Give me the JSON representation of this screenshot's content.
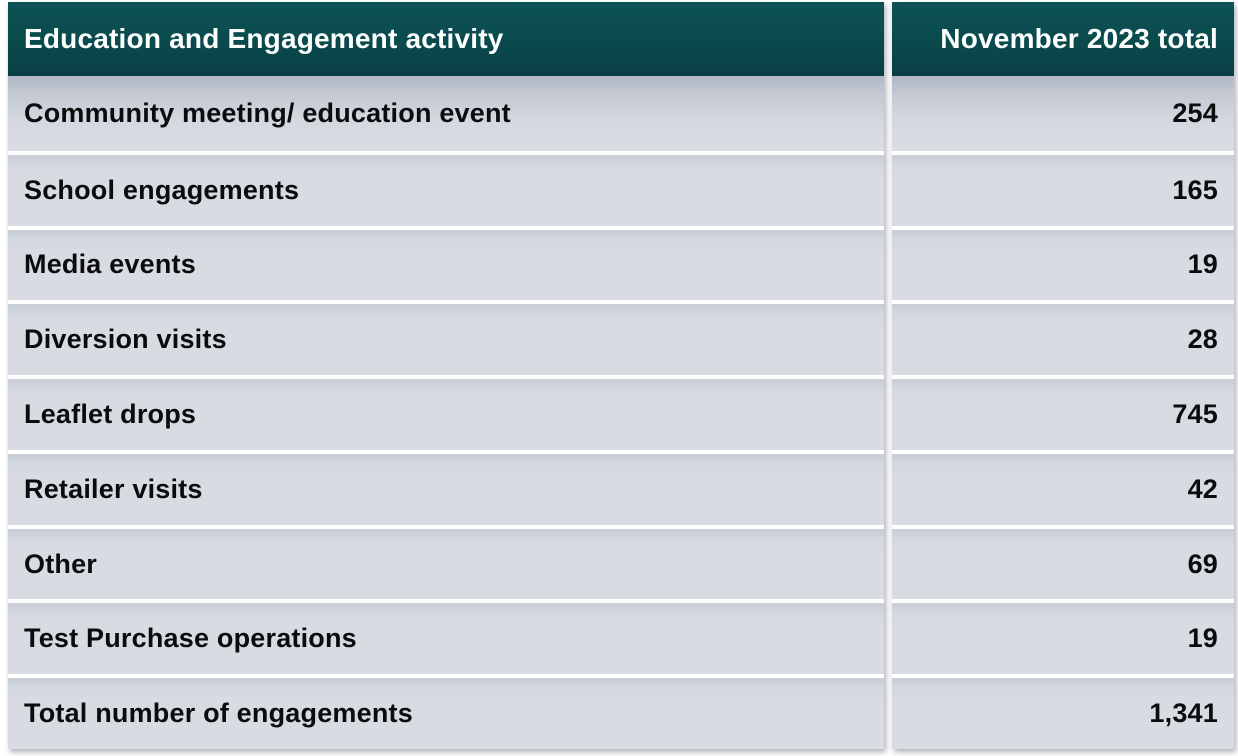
{
  "table": {
    "header": {
      "activity_label": "Education and Engagement activity",
      "total_label": "November 2023 total"
    },
    "rows": [
      {
        "activity": "Community meeting/ education event",
        "total": "254"
      },
      {
        "activity": "School engagements",
        "total": "165"
      },
      {
        "activity": "Media events",
        "total": "19"
      },
      {
        "activity": "Diversion visits",
        "total": "28"
      },
      {
        "activity": "Leaflet drops",
        "total": "745"
      },
      {
        "activity": "Retailer visits",
        "total": "42"
      },
      {
        "activity": "Other",
        "total": "69"
      },
      {
        "activity": "Test Purchase operations",
        "total": "19"
      },
      {
        "activity": "Total number of engagements",
        "total": "1,341"
      }
    ]
  },
  "colors": {
    "header_bg": "#0a4a4d",
    "header_text": "#ffffff",
    "row_bg": "#d8dbe2",
    "row_text": "#0b0c0e",
    "gap": "#ffffff"
  },
  "chart_data": {
    "type": "table",
    "title": "Education and Engagement activity",
    "columns": [
      "Education and Engagement activity",
      "November 2023 total"
    ],
    "categories": [
      "Community meeting/ education event",
      "School engagements",
      "Media events",
      "Diversion visits",
      "Leaflet drops",
      "Retailer visits",
      "Other",
      "Test Purchase operations"
    ],
    "values": [
      254,
      165,
      19,
      28,
      745,
      42,
      69,
      19
    ],
    "total_row": {
      "label": "Total number of engagements",
      "value": 1341
    },
    "layout": {
      "value_alignment": "right",
      "header_style": "dark-teal",
      "grid": "white-gaps"
    }
  }
}
